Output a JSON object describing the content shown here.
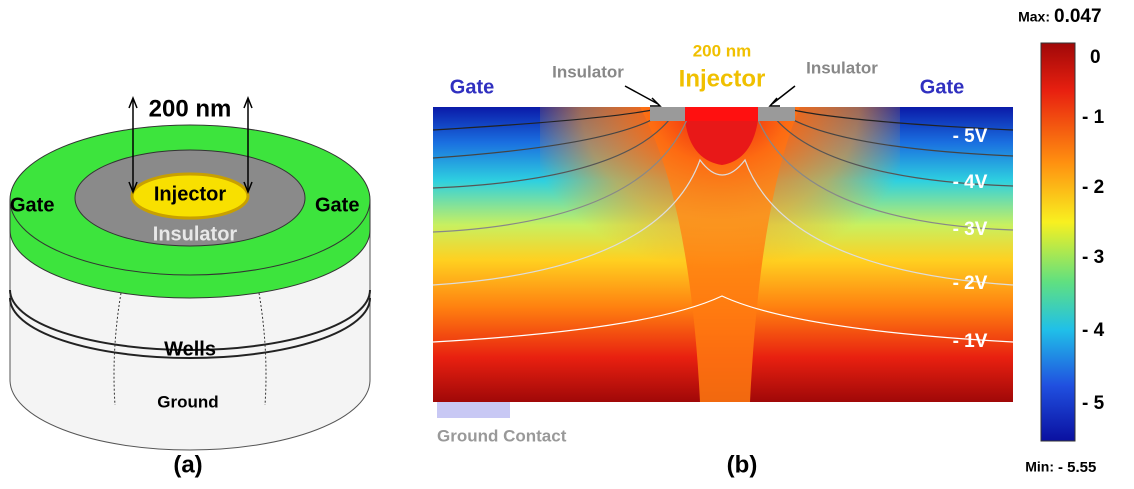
{
  "panel_a": {
    "dimension": "200 nm",
    "injector": "Injector",
    "insulator": "Insulator",
    "gate_left": "Gate",
    "gate_right": "Gate",
    "wells": "Wells",
    "ground": "Ground",
    "caption": "(a)"
  },
  "panel_b": {
    "gate_left": "Gate",
    "gate_right": "Gate",
    "insulator_left": "Insulator",
    "insulator_right": "Insulator",
    "injector_size": "200 nm",
    "injector": "Injector",
    "contours": [
      "- 5V",
      "- 4V",
      "- 3V",
      "- 2V",
      "- 1V"
    ],
    "ground_contact": "Ground Contact",
    "caption": "(b)"
  },
  "colorbar": {
    "max_label": "Max:",
    "max_value": "0.047",
    "min_label": "Min:",
    "min_value": "- 5.55",
    "ticks": [
      "0",
      "- 1",
      "- 2",
      "- 3",
      "- 4",
      "- 5"
    ]
  }
}
